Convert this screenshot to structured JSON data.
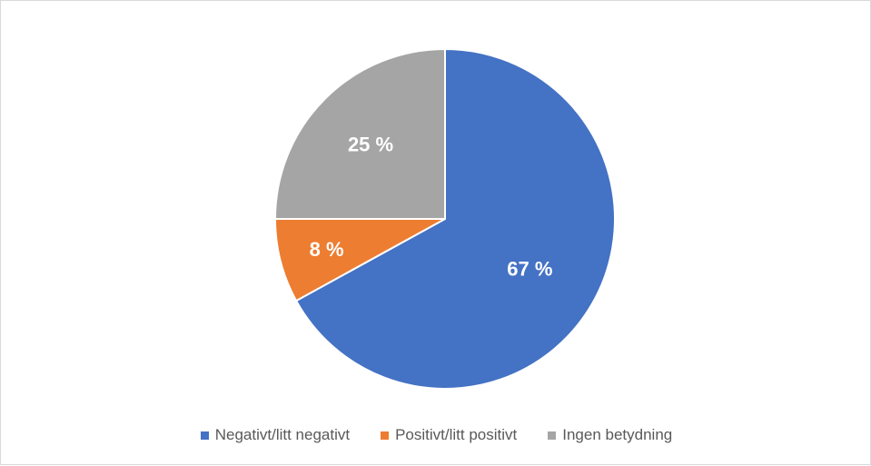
{
  "chart_data": {
    "type": "pie",
    "title": "",
    "categories": [
      "Negativt/litt negativt",
      "Positivt/litt positivt",
      "Ingen betydning"
    ],
    "values": [
      67,
      8,
      25
    ],
    "labels": [
      "67 %",
      "8 %",
      "25 %"
    ],
    "colors": [
      "#4472c4",
      "#ed7d31",
      "#a5a5a5"
    ],
    "legend_position": "bottom",
    "start_angle_deg": 0,
    "direction": "clockwise"
  }
}
